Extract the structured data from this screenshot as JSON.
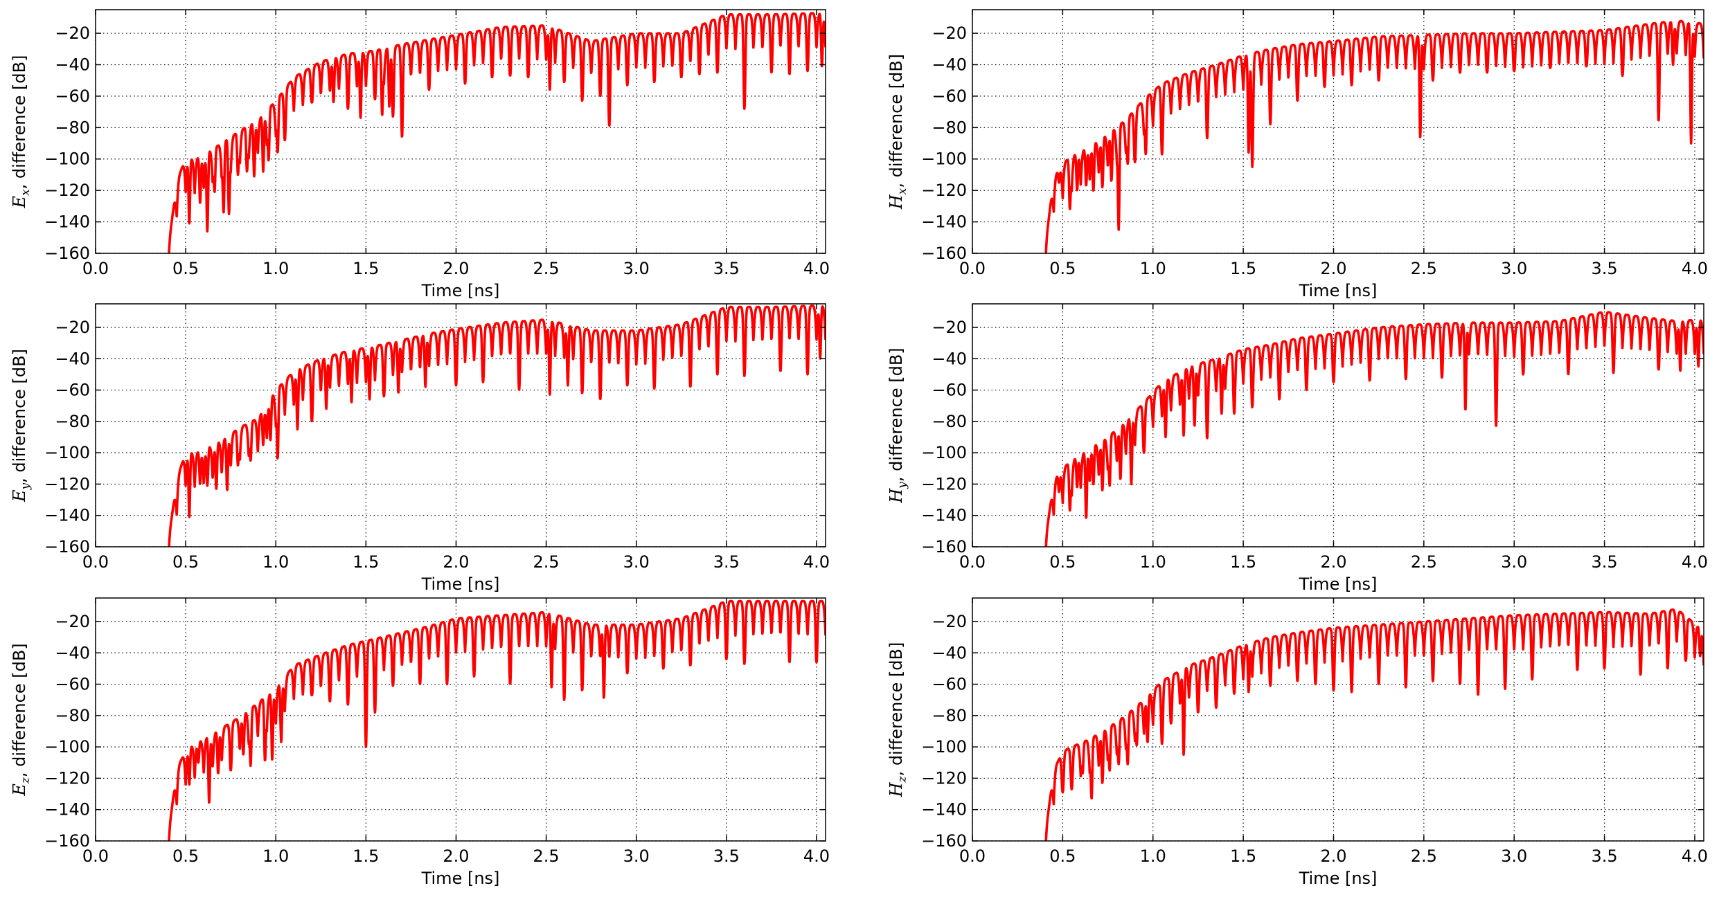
{
  "figure": {
    "line_color": "#ff0000",
    "grid": true,
    "grid_style": "dotted"
  },
  "chart_data": [
    {
      "type": "line",
      "ylabel_symbol": "E",
      "ylabel_subscript": "x",
      "ylabel_rest": ", difference [dB]",
      "xlabel": "Time [ns]",
      "xlim": [
        0.0,
        4.05
      ],
      "ylim": [
        -160,
        -5
      ],
      "xticks": [
        "0.0",
        "0.5",
        "1.0",
        "1.5",
        "2.0",
        "2.5",
        "3.0",
        "3.5",
        "4.0"
      ],
      "yticks": [
        "-20",
        "-40",
        "-60",
        "-80",
        "-100",
        "-120",
        "-140",
        "-160"
      ],
      "envelope": {
        "t": [
          0.4,
          0.45,
          0.5,
          0.55,
          0.6,
          0.7,
          0.8,
          0.9,
          1.0,
          1.1,
          1.25,
          1.4,
          1.55,
          1.7,
          1.85,
          2.0,
          2.25,
          2.5,
          2.75,
          3.0,
          3.25,
          3.5,
          3.75,
          4.05
        ],
        "db": [
          -160,
          -115,
          -99,
          -100,
          -97,
          -90,
          -82,
          -75,
          -63,
          -48,
          -38,
          -33,
          -31,
          -27,
          -24,
          -21,
          -16,
          -15,
          -25,
          -20,
          -20,
          -8,
          -8,
          -7
        ]
      },
      "series": [
        {
          "t": [
            0.52,
            0.58,
            0.62,
            0.66,
            0.71,
            0.74,
            0.79,
            0.84,
            0.88,
            0.93,
            0.96,
            1.01,
            1.05,
            1.2,
            1.32,
            1.4,
            1.47,
            1.55,
            1.59,
            1.63,
            1.65,
            1.7,
            1.85,
            2.05,
            2.2,
            2.3,
            2.4,
            2.52,
            2.6,
            2.7,
            2.8,
            2.85,
            2.95,
            3.1,
            3.25,
            3.35,
            3.45,
            3.6,
            3.75,
            3.85,
            3.95,
            4.03
          ],
          "db": [
            -141,
            -128,
            -146,
            -121,
            -134,
            -135,
            -110,
            -108,
            -111,
            -108,
            -101,
            -96,
            -88,
            -64,
            -64,
            -68,
            -74,
            -62,
            -72,
            -67,
            -73,
            -86,
            -56,
            -52,
            -48,
            -47,
            -48,
            -56,
            -51,
            -63,
            -60,
            -79,
            -53,
            -51,
            -48,
            -46,
            -45,
            -68,
            -45,
            -46,
            -44,
            -41
          ]
        }
      ]
    },
    {
      "type": "line",
      "ylabel_symbol": "H",
      "ylabel_subscript": "x",
      "ylabel_rest": ", difference [dB]",
      "xlabel": "Time [ns]",
      "xlim": [
        0.0,
        4.05
      ],
      "ylim": [
        -160,
        -5
      ],
      "xticks": [
        "0.0",
        "0.5",
        "1.0",
        "1.5",
        "2.0",
        "2.5",
        "3.0",
        "3.5",
        "4.0"
      ],
      "yticks": [
        "-20",
        "-40",
        "-60",
        "-80",
        "-100",
        "-120",
        "-140",
        "-160"
      ],
      "envelope": {
        "t": [
          0.4,
          0.45,
          0.5,
          0.55,
          0.65,
          0.75,
          0.85,
          0.95,
          1.05,
          1.2,
          1.35,
          1.5,
          1.65,
          1.8,
          2.0,
          2.25,
          2.5,
          2.75,
          3.0,
          3.25,
          3.5,
          3.75,
          3.9,
          4.05
        ],
        "db": [
          -160,
          -112,
          -103,
          -98,
          -92,
          -84,
          -75,
          -62,
          -52,
          -45,
          -40,
          -34,
          -30,
          -27,
          -25,
          -22,
          -21,
          -20,
          -20,
          -19,
          -18,
          -14,
          -12,
          -14
        ]
      },
      "series": [
        {
          "t": [
            0.48,
            0.54,
            0.58,
            0.63,
            0.67,
            0.72,
            0.77,
            0.81,
            0.86,
            0.9,
            0.96,
            1.05,
            1.3,
            1.53,
            1.55,
            1.65,
            1.8,
            1.95,
            2.1,
            2.25,
            2.48,
            2.55,
            2.7,
            2.85,
            3.0,
            3.2,
            3.4,
            3.6,
            3.8,
            3.88,
            3.98
          ],
          "db": [
            -115,
            -132,
            -120,
            -117,
            -120,
            -118,
            -114,
            -145,
            -103,
            -102,
            -97,
            -97,
            -87,
            -96,
            -105,
            -78,
            -63,
            -54,
            -53,
            -50,
            -86,
            -50,
            -45,
            -45,
            -44,
            -42,
            -41,
            -47,
            -76,
            -40,
            -90
          ]
        }
      ]
    },
    {
      "type": "line",
      "ylabel_symbol": "E",
      "ylabel_subscript": "y",
      "ylabel_rest": ", difference [dB]",
      "xlabel": "Time [ns]",
      "xlim": [
        0.0,
        4.05
      ],
      "ylim": [
        -160,
        -5
      ],
      "xticks": [
        "0.0",
        "0.5",
        "1.0",
        "1.5",
        "2.0",
        "2.5",
        "3.0",
        "3.5",
        "4.0"
      ],
      "yticks": [
        "-20",
        "-40",
        "-60",
        "-80",
        "-100",
        "-120",
        "-140",
        "-160"
      ],
      "envelope": {
        "t": [
          0.4,
          0.45,
          0.5,
          0.55,
          0.6,
          0.7,
          0.8,
          0.9,
          1.0,
          1.1,
          1.25,
          1.4,
          1.55,
          1.7,
          1.85,
          2.0,
          2.25,
          2.5,
          2.75,
          3.0,
          3.25,
          3.5,
          3.75,
          4.05
        ],
        "db": [
          -160,
          -118,
          -99,
          -100,
          -98,
          -92,
          -84,
          -78,
          -60,
          -48,
          -40,
          -35,
          -32,
          -28,
          -24,
          -21,
          -17,
          -15,
          -22,
          -22,
          -18,
          -7,
          -7,
          -6
        ]
      },
      "series": [
        {
          "t": [
            0.52,
            0.58,
            0.62,
            0.67,
            0.73,
            0.79,
            0.86,
            0.93,
            0.97,
            1.01,
            1.12,
            1.2,
            1.28,
            1.42,
            1.52,
            1.6,
            1.68,
            1.83,
            2.0,
            2.15,
            2.35,
            2.52,
            2.62,
            2.7,
            2.8,
            2.95,
            3.1,
            3.3,
            3.45,
            3.6,
            3.8,
            3.95,
            4.02
          ],
          "db": [
            -141,
            -120,
            -121,
            -123,
            -124,
            -108,
            -105,
            -95,
            -92,
            -104,
            -85,
            -80,
            -72,
            -68,
            -66,
            -64,
            -62,
            -58,
            -57,
            -55,
            -60,
            -63,
            -57,
            -62,
            -66,
            -57,
            -59,
            -58,
            -50,
            -51,
            -48,
            -50,
            -40
          ]
        }
      ]
    },
    {
      "type": "line",
      "ylabel_symbol": "H",
      "ylabel_subscript": "y",
      "ylabel_rest": ", difference [dB]",
      "xlabel": "Time [ns]",
      "xlim": [
        0.0,
        4.05
      ],
      "ylim": [
        -160,
        -5
      ],
      "xticks": [
        "0.0",
        "0.5",
        "1.0",
        "1.5",
        "2.0",
        "2.5",
        "3.0",
        "3.5",
        "4.0"
      ],
      "yticks": [
        "-20",
        "-40",
        "-60",
        "-80",
        "-100",
        "-120",
        "-140",
        "-160"
      ],
      "envelope": {
        "t": [
          0.4,
          0.45,
          0.5,
          0.55,
          0.65,
          0.75,
          0.85,
          0.95,
          1.05,
          1.2,
          1.35,
          1.5,
          1.65,
          1.8,
          2.0,
          2.25,
          2.5,
          2.75,
          3.0,
          3.25,
          3.5,
          3.75,
          3.9,
          4.05
        ],
        "db": [
          -160,
          -118,
          -110,
          -105,
          -97,
          -90,
          -80,
          -68,
          -55,
          -45,
          -40,
          -34,
          -31,
          -27,
          -24,
          -20,
          -18,
          -17,
          -17,
          -16,
          -10,
          -14,
          -16,
          -15
        ]
      },
      "series": [
        {
          "t": [
            0.48,
            0.54,
            0.58,
            0.63,
            0.67,
            0.72,
            0.76,
            0.82,
            0.88,
            0.95,
            1.07,
            1.17,
            1.23,
            1.3,
            1.38,
            1.45,
            1.55,
            1.7,
            1.85,
            2.0,
            2.2,
            2.4,
            2.6,
            2.73,
            2.9,
            3.05,
            3.3,
            3.55,
            3.8,
            3.92,
            4.02
          ],
          "db": [
            -125,
            -137,
            -122,
            -142,
            -120,
            -124,
            -121,
            -117,
            -120,
            -100,
            -90,
            -89,
            -83,
            -91,
            -75,
            -75,
            -71,
            -66,
            -60,
            -55,
            -54,
            -53,
            -52,
            -73,
            -83,
            -50,
            -50,
            -49,
            -47,
            -48,
            -45
          ]
        }
      ]
    },
    {
      "type": "line",
      "ylabel_symbol": "E",
      "ylabel_subscript": "z",
      "ylabel_rest": ", difference [dB]",
      "xlabel": "Time [ns]",
      "xlim": [
        0.0,
        4.05
      ],
      "ylim": [
        -160,
        -5
      ],
      "xticks": [
        "0.0",
        "0.5",
        "1.0",
        "1.5",
        "2.0",
        "2.5",
        "3.0",
        "3.5",
        "4.0"
      ],
      "yticks": [
        "-20",
        "-40",
        "-60",
        "-80",
        "-100",
        "-120",
        "-140",
        "-160"
      ],
      "envelope": {
        "t": [
          0.4,
          0.45,
          0.5,
          0.55,
          0.6,
          0.7,
          0.8,
          0.9,
          1.0,
          1.1,
          1.25,
          1.4,
          1.55,
          1.7,
          1.85,
          2.0,
          2.25,
          2.5,
          2.75,
          3.0,
          3.25,
          3.5,
          3.75,
          4.05
        ],
        "db": [
          -160,
          -115,
          -102,
          -98,
          -95,
          -88,
          -81,
          -72,
          -63,
          -48,
          -41,
          -35,
          -31,
          -27,
          -23,
          -18,
          -16,
          -14,
          -22,
          -22,
          -18,
          -7,
          -7,
          -7
        ]
      },
      "series": [
        {
          "t": [
            0.52,
            0.57,
            0.63,
            0.68,
            0.75,
            0.82,
            0.86,
            0.94,
            0.98,
            1.03,
            1.2,
            1.3,
            1.4,
            1.5,
            1.55,
            1.65,
            1.8,
            1.95,
            2.1,
            2.3,
            2.53,
            2.6,
            2.7,
            2.82,
            2.95,
            3.15,
            3.3,
            3.5,
            3.6,
            3.85,
            4.0
          ],
          "db": [
            -124,
            -110,
            -136,
            -117,
            -115,
            -105,
            -112,
            -109,
            -108,
            -97,
            -67,
            -71,
            -73,
            -100,
            -78,
            -61,
            -60,
            -60,
            -55,
            -60,
            -62,
            -70,
            -64,
            -69,
            -53,
            -50,
            -48,
            -44,
            -47,
            -46,
            -46
          ]
        }
      ]
    },
    {
      "type": "line",
      "ylabel_symbol": "H",
      "ylabel_subscript": "z",
      "ylabel_rest": ", difference [dB]",
      "xlabel": "Time [ns]",
      "xlim": [
        0.0,
        4.05
      ],
      "ylim": [
        -160,
        -5
      ],
      "xticks": [
        "0.0",
        "0.5",
        "1.0",
        "1.5",
        "2.0",
        "2.5",
        "3.0",
        "3.5",
        "4.0"
      ],
      "yticks": [
        "-20",
        "-40",
        "-60",
        "-80",
        "-100",
        "-120",
        "-140",
        "-160"
      ],
      "envelope": {
        "t": [
          0.4,
          0.45,
          0.5,
          0.55,
          0.65,
          0.75,
          0.85,
          0.95,
          1.05,
          1.2,
          1.35,
          1.5,
          1.65,
          1.8,
          2.0,
          2.25,
          2.5,
          2.75,
          3.0,
          3.25,
          3.5,
          3.75,
          3.9,
          4.05
        ],
        "db": [
          -160,
          -115,
          -103,
          -100,
          -95,
          -88,
          -80,
          -70,
          -58,
          -48,
          -42,
          -35,
          -30,
          -27,
          -24,
          -22,
          -20,
          -18,
          -16,
          -15,
          -14,
          -15,
          -12,
          -26
        ]
      },
      "series": [
        {
          "t": [
            0.5,
            0.55,
            0.61,
            0.66,
            0.72,
            0.76,
            0.81,
            0.86,
            0.91,
            0.97,
            1.05,
            1.1,
            1.17,
            1.25,
            1.35,
            1.45,
            1.53,
            1.65,
            1.8,
            1.9,
            2.0,
            2.1,
            2.25,
            2.4,
            2.55,
            2.7,
            2.8,
            2.95,
            3.1,
            3.35,
            3.5,
            3.7,
            3.85,
            3.95,
            4.03
          ],
          "db": [
            -129,
            -127,
            -117,
            -133,
            -123,
            -115,
            -111,
            -111,
            -99,
            -97,
            -98,
            -85,
            -105,
            -78,
            -75,
            -66,
            -65,
            -61,
            -58,
            -60,
            -64,
            -65,
            -60,
            -62,
            -58,
            -60,
            -67,
            -63,
            -57,
            -51,
            -50,
            -54,
            -50,
            -45,
            -42
          ]
        }
      ]
    }
  ]
}
